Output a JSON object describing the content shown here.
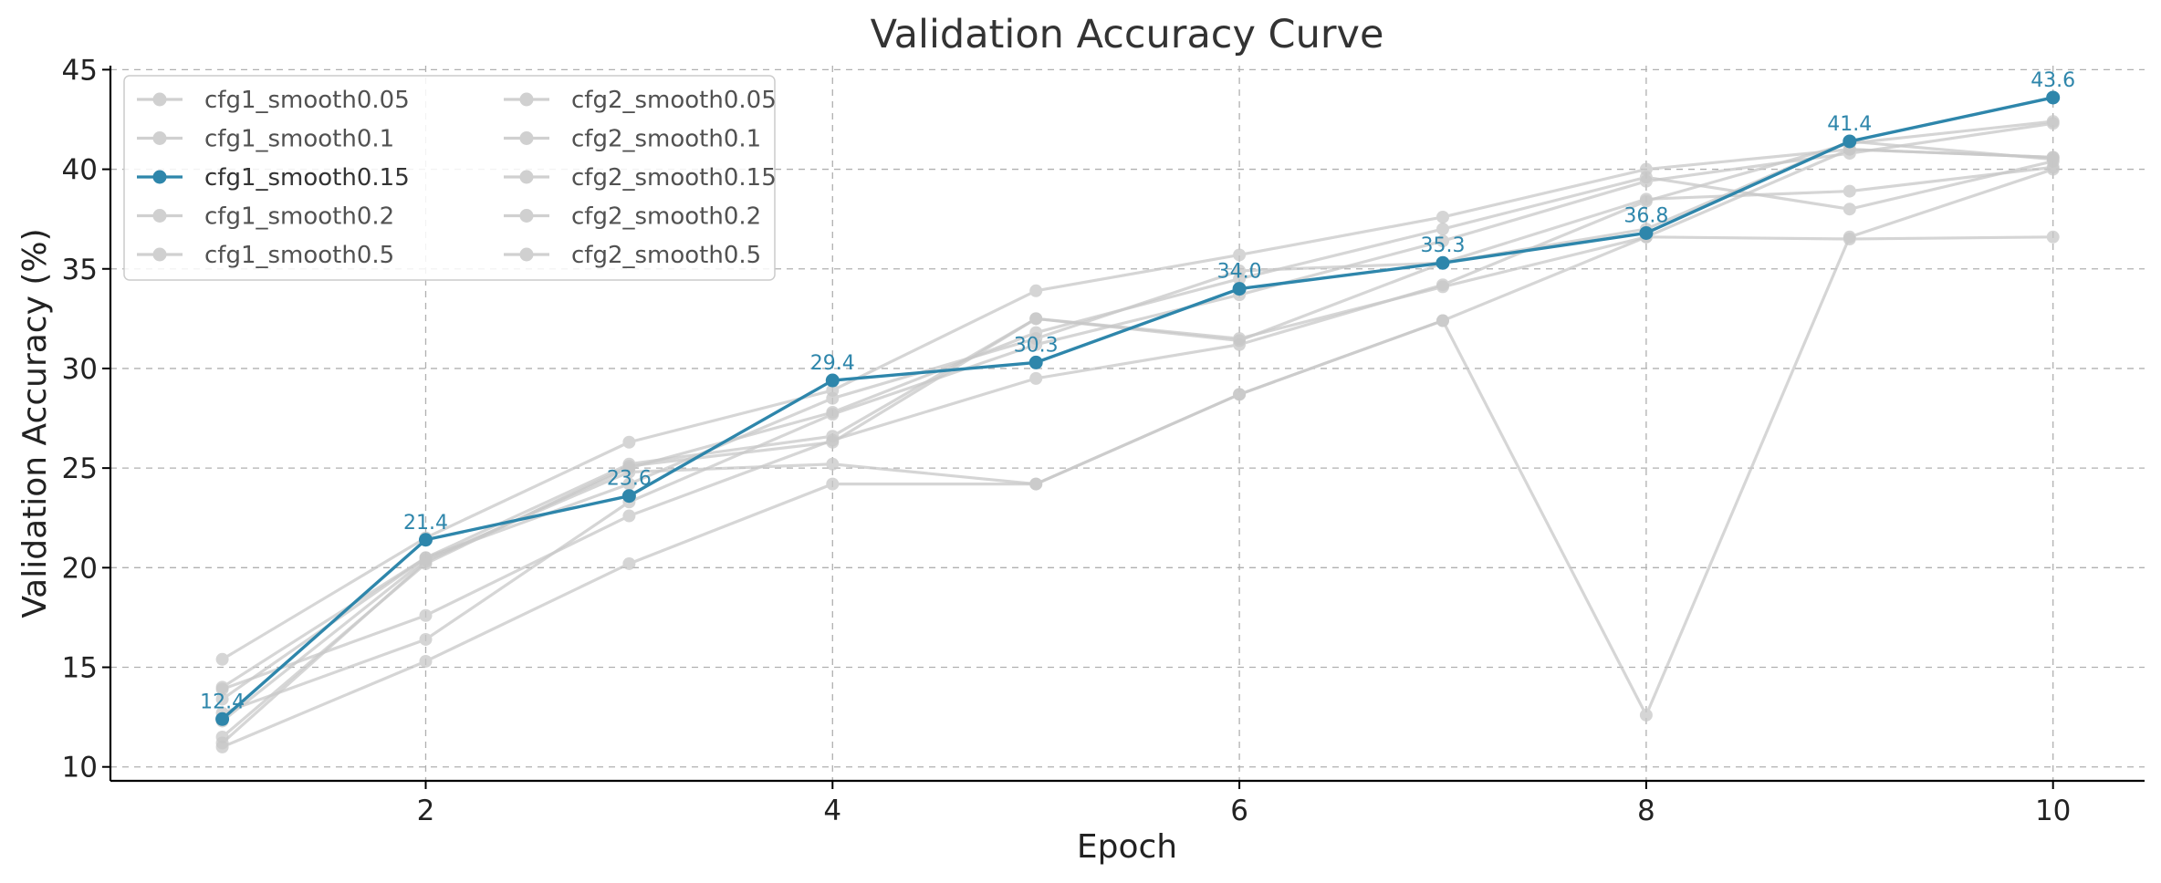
{
  "chart_data": {
    "type": "line",
    "title": "Validation Accuracy Curve",
    "xlabel": "Epoch",
    "ylabel": "Validation Accuracy (%)",
    "xlim": [
      0.45,
      10.45
    ],
    "ylim": [
      9.3,
      45.2
    ],
    "xticks": [
      2,
      4,
      6,
      8,
      10
    ],
    "yticks": [
      10,
      15,
      20,
      25,
      30,
      35,
      40,
      45
    ],
    "grid": true,
    "legend_position": "top-left",
    "legend_columns": 2,
    "x": [
      1,
      2,
      3,
      4,
      5,
      6,
      7,
      8,
      9,
      10
    ],
    "highlight_color": "#2e86ab",
    "muted_color": "#c8c8c8",
    "highlight_series": "cfg1_smooth0.15",
    "series": [
      {
        "name": "cfg1_smooth0.05",
        "values": [
          15.4,
          21.5,
          26.3,
          28.9,
          33.9,
          35.7,
          37.6,
          40.0,
          41.0,
          40.6
        ]
      },
      {
        "name": "cfg1_smooth0.1",
        "values": [
          14.0,
          20.5,
          25.2,
          26.6,
          32.5,
          31.4,
          35.3,
          38.5,
          38.9,
          40.1
        ]
      },
      {
        "name": "cfg1_smooth0.15",
        "values": [
          12.4,
          21.4,
          23.6,
          29.4,
          30.3,
          34.0,
          35.3,
          36.8,
          41.4,
          43.6
        ],
        "labels": [
          "12.4",
          "21.4",
          "23.6",
          "29.4",
          "30.3",
          "34.0",
          "35.3",
          "36.8",
          "41.4",
          "43.6"
        ]
      },
      {
        "name": "cfg1_smooth0.2",
        "values": [
          11.2,
          20.3,
          25.0,
          27.8,
          31.8,
          34.5,
          37.0,
          39.6,
          38.0,
          40.4
        ]
      },
      {
        "name": "cfg1_smooth0.5",
        "values": [
          12.3,
          20.4,
          24.8,
          25.2,
          24.2,
          28.7,
          32.4,
          12.6,
          36.6,
          40.0
        ]
      },
      {
        "name": "cfg2_smooth0.05",
        "values": [
          11.0,
          15.3,
          20.2,
          24.2,
          24.2,
          28.7,
          32.4,
          36.6,
          36.5,
          36.6
        ]
      },
      {
        "name": "cfg2_smooth0.1",
        "values": [
          13.9,
          17.6,
          22.6,
          26.4,
          29.5,
          31.2,
          34.2,
          38.4,
          41.3,
          42.4
        ]
      },
      {
        "name": "cfg2_smooth0.15",
        "values": [
          12.7,
          16.4,
          23.3,
          27.7,
          31.2,
          33.7,
          36.4,
          39.4,
          40.8,
          42.3
        ]
      },
      {
        "name": "cfg2_smooth0.2",
        "values": [
          13.4,
          20.5,
          24.2,
          28.5,
          31.5,
          34.9,
          35.3,
          37.0,
          41.4,
          40.5
        ]
      },
      {
        "name": "cfg2_smooth0.5",
        "values": [
          11.5,
          20.2,
          25.1,
          26.3,
          32.5,
          31.5,
          34.1,
          36.6,
          41.0,
          40.6
        ]
      }
    ]
  }
}
